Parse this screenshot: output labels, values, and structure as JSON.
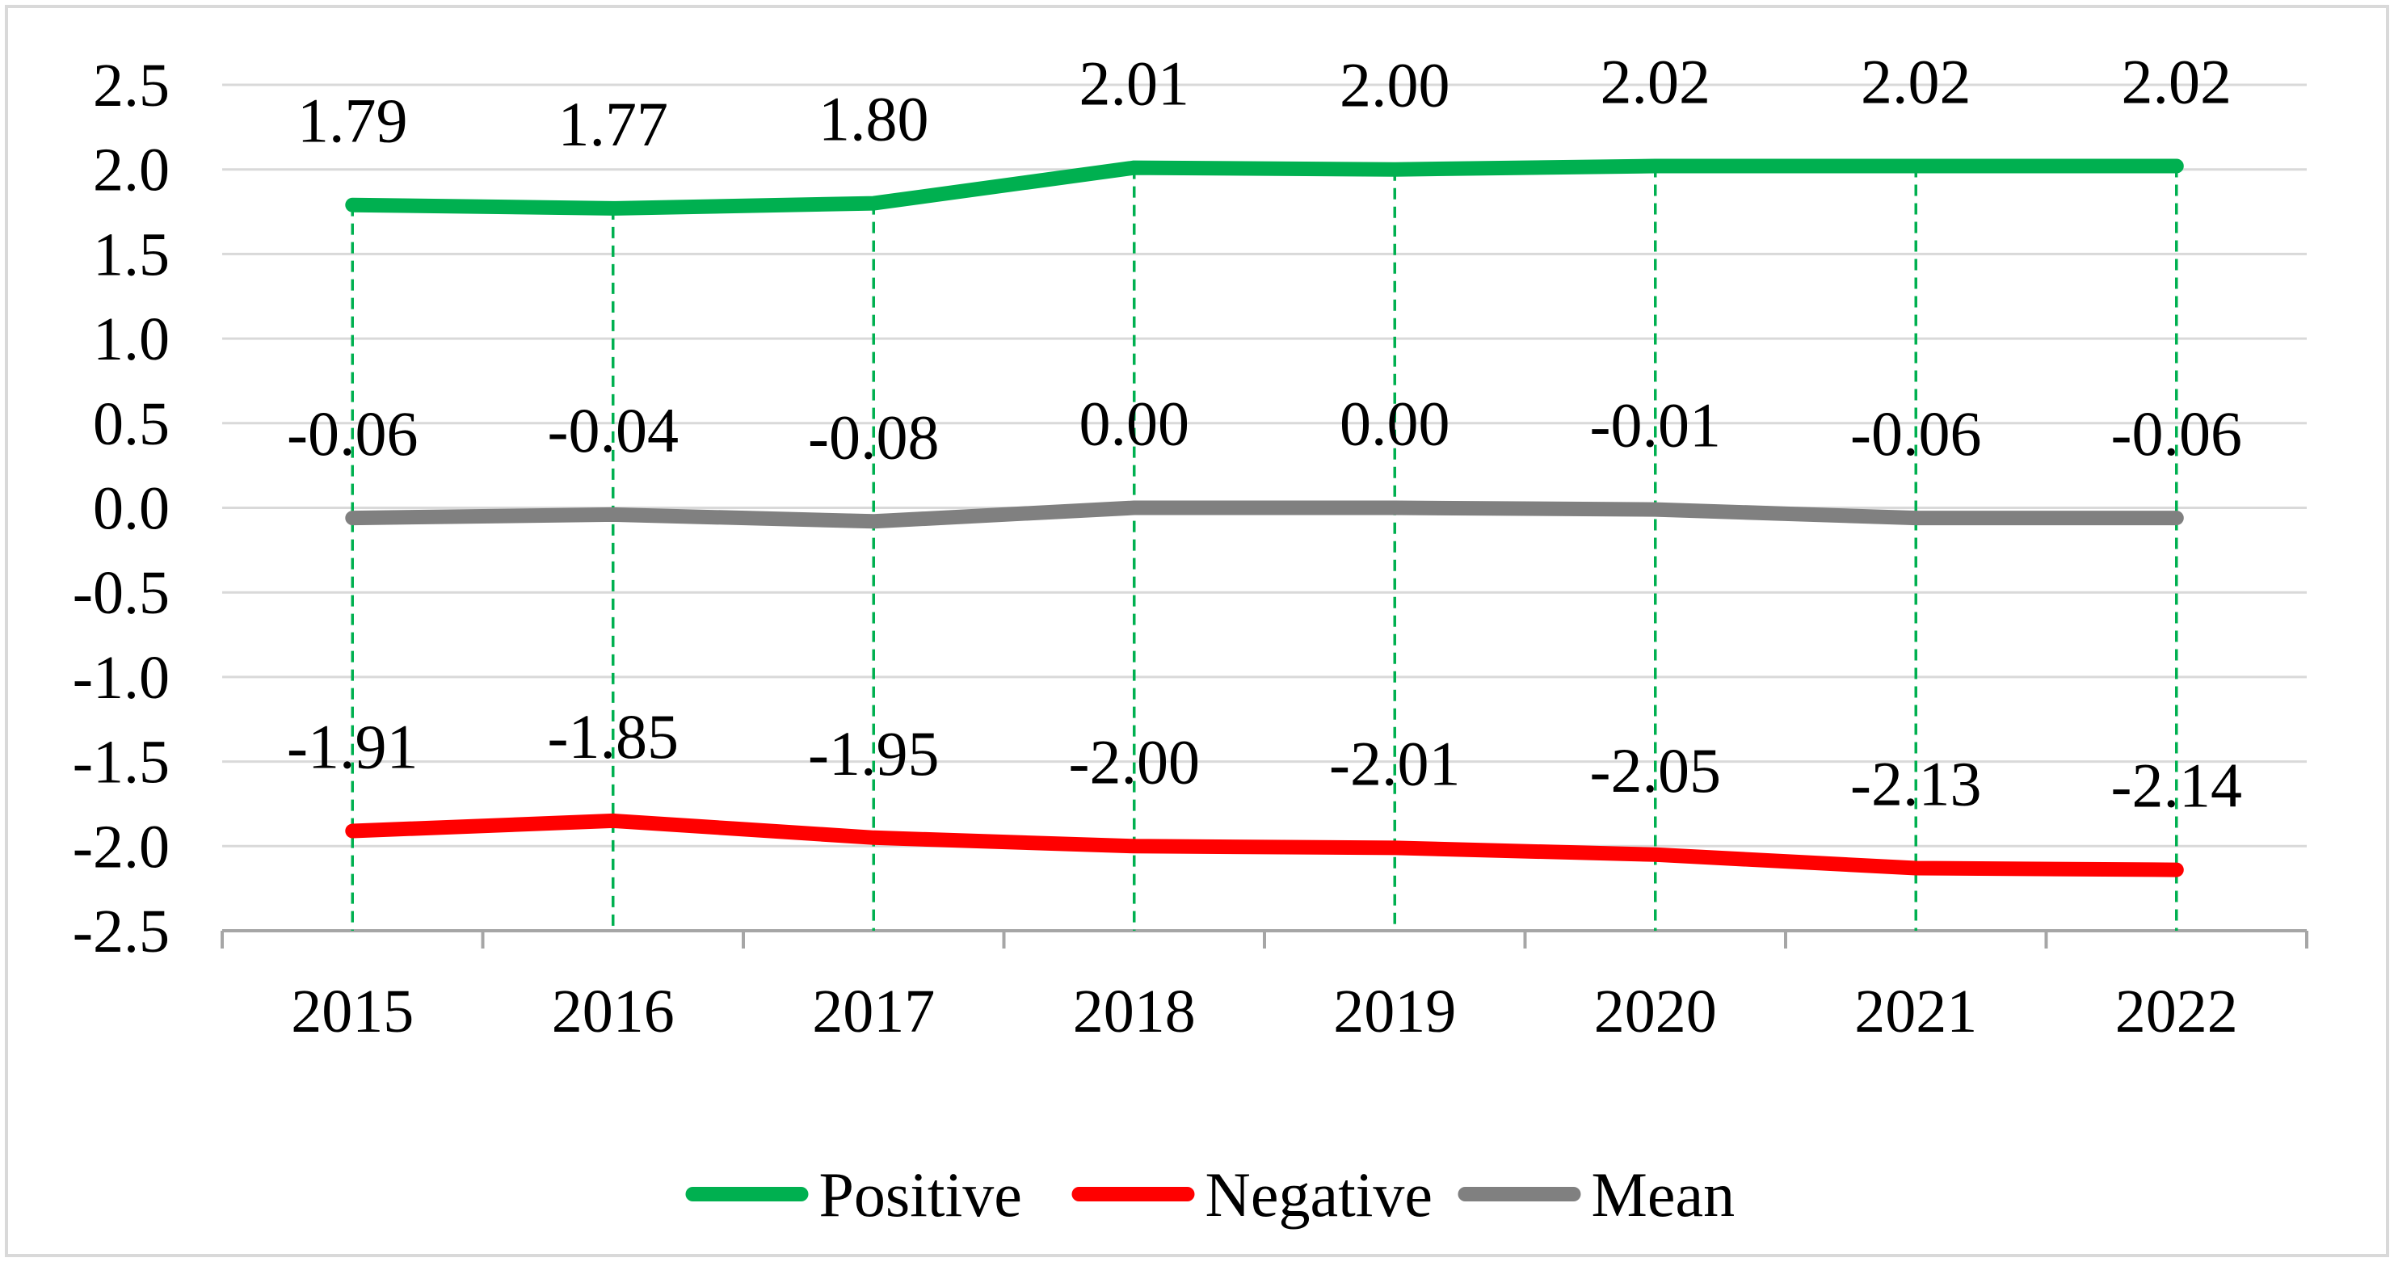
{
  "chart_data": {
    "type": "line",
    "title": "",
    "xlabel": "",
    "ylabel": "",
    "categories": [
      "2015",
      "2016",
      "2017",
      "2018",
      "2019",
      "2020",
      "2021",
      "2022"
    ],
    "ylim": [
      -2.5,
      2.5
    ],
    "yticks": [
      "2.5",
      "2.0",
      "1.5",
      "1.0",
      "0.5",
      "0.0",
      "-0.5",
      "-1.0",
      "-1.5",
      "-2.0",
      "-2.5"
    ],
    "ytick_values": [
      2.5,
      2.0,
      1.5,
      1.0,
      0.5,
      0.0,
      -0.5,
      -1.0,
      -1.5,
      -2.0,
      -2.5
    ],
    "grid": true,
    "drop_lines": true,
    "legend_position": "bottom",
    "series": [
      {
        "name": "Positive",
        "color": "#00b050",
        "values": [
          1.79,
          1.77,
          1.8,
          2.01,
          2.0,
          2.02,
          2.02,
          2.02
        ],
        "labels": [
          "1.79",
          "1.77",
          "1.80",
          "2.01",
          "2.00",
          "2.02",
          "2.02",
          "2.02"
        ]
      },
      {
        "name": "Negative",
        "color": "#ff0000",
        "values": [
          -1.91,
          -1.85,
          -1.95,
          -2.0,
          -2.01,
          -2.05,
          -2.13,
          -2.14
        ],
        "labels": [
          "-1.91",
          "-1.85",
          "-1.95",
          "-2.00",
          "-2.01",
          "-2.05",
          "-2.13",
          "-2.14"
        ]
      },
      {
        "name": "Mean",
        "color": "#808080",
        "values": [
          -0.06,
          -0.04,
          -0.08,
          0.0,
          0.0,
          -0.01,
          -0.06,
          -0.06
        ],
        "labels": [
          "-0.06",
          "-0.04",
          "-0.08",
          "0.00",
          "0.00",
          "-0.01",
          "-0.06",
          "-0.06"
        ]
      }
    ],
    "colors": {
      "grid": "#d9d9d9",
      "axis": "#a6a6a6",
      "drop_line": "#00b050",
      "frame": "#d9d9d9"
    }
  }
}
